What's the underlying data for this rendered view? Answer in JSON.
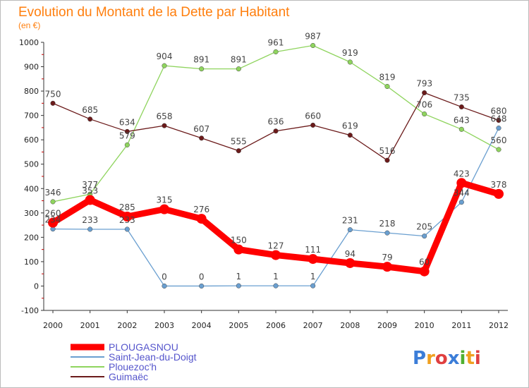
{
  "chart_data": {
    "type": "line",
    "title": "Evolution du Montant de la Dette par Habitant",
    "subtitle": "(en €)",
    "xlabel": "",
    "ylabel": "",
    "x": [
      "2000",
      "2001",
      "2002",
      "2003",
      "2004",
      "2005",
      "2006",
      "2007",
      "2008",
      "2009",
      "2010",
      "2011",
      "2012"
    ],
    "ylim": [
      -100,
      1000
    ],
    "yticks": [
      -100,
      0,
      100,
      200,
      300,
      400,
      500,
      600,
      700,
      800,
      900,
      1000
    ],
    "grid": false,
    "legend_position": "bottom-left",
    "series": [
      {
        "name": "PLOUGASNOU",
        "color": "#ff0000",
        "values": [
          260,
          353,
          285,
          315,
          276,
          150,
          127,
          111,
          94,
          79,
          60,
          423,
          378
        ]
      },
      {
        "name": "Saint-Jean-du-Doigt",
        "color": "#6a9fd0",
        "values": [
          234,
          233,
          233,
          0,
          0,
          1,
          1,
          1,
          231,
          218,
          205,
          344,
          648
        ]
      },
      {
        "name": "Plouezoc'h",
        "color": "#8fd45e",
        "values": [
          346,
          377,
          579,
          904,
          891,
          891,
          961,
          987,
          919,
          819,
          706,
          643,
          560
        ]
      },
      {
        "name": "Guimaëc",
        "color": "#6b1a1a",
        "values": [
          750,
          685,
          634,
          658,
          607,
          555,
          636,
          660,
          619,
          516,
          793,
          735,
          680
        ]
      }
    ]
  },
  "logo": {
    "text": "Proxiti",
    "colors": [
      "#3b7dd8",
      "#f0a020",
      "#e04040",
      "#3b7dd8",
      "#50b030",
      "#f0a020",
      "#e04040"
    ]
  }
}
